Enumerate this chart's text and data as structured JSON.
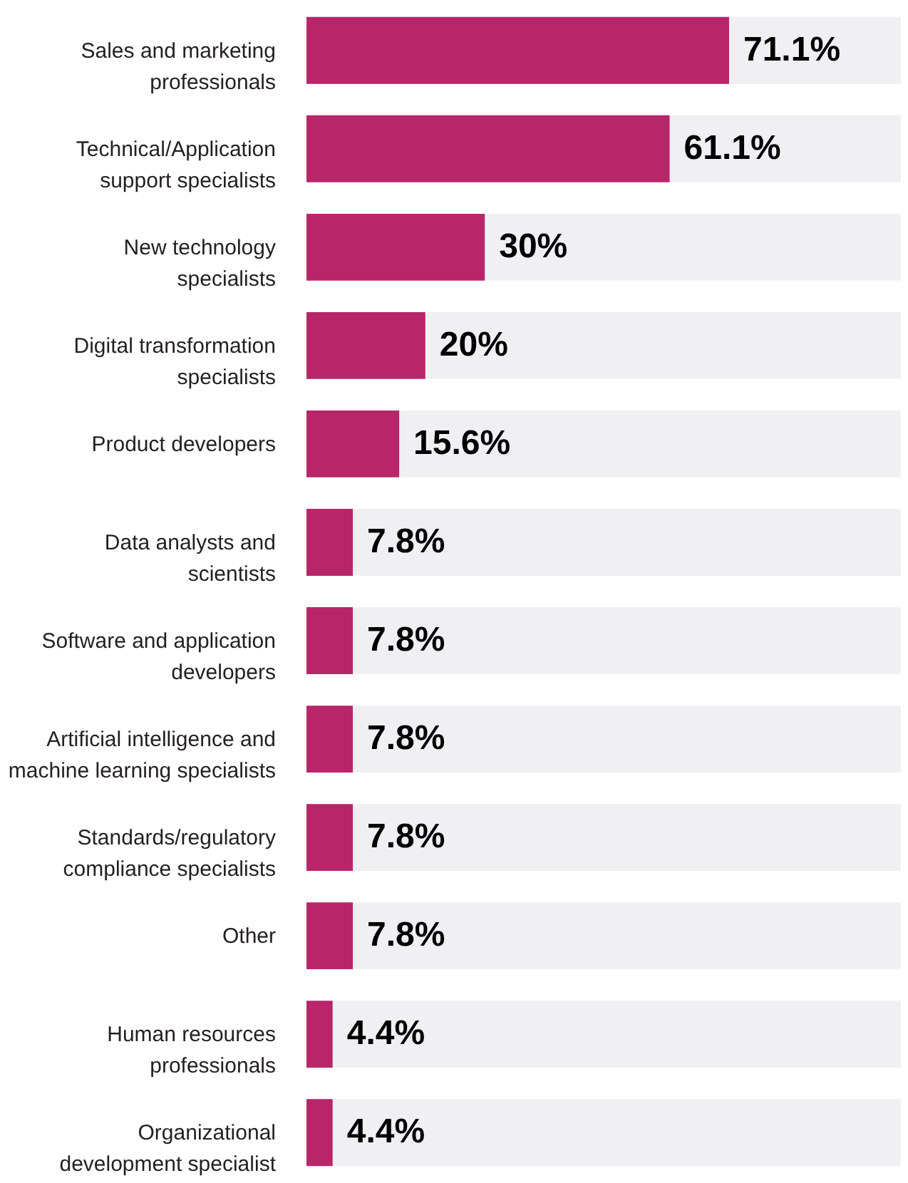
{
  "chart_data": {
    "type": "bar",
    "orientation": "horizontal",
    "categories": [
      "Sales and marketing professionals",
      "Technical/Application support specialists",
      "New technology specialists",
      "Digital transformation specialists",
      "Product developers",
      "Data analysts and scientists",
      "Software and application developers",
      "Artificial intelligence and machine learning specialists",
      "Standards/regulatory compliance specialists",
      "Other",
      "Human resources professionals",
      "Organizational development specialist"
    ],
    "values": [
      71.1,
      61.1,
      30,
      20,
      15.6,
      7.8,
      7.8,
      7.8,
      7.8,
      7.8,
      4.4,
      4.4
    ],
    "value_labels": [
      "71.1%",
      "61.1%",
      "30%",
      "20%",
      "15.6%",
      "7.8%",
      "7.8%",
      "7.8%",
      "7.8%",
      "7.8%",
      "4.4%",
      "4.4%"
    ],
    "color": "#b8266a",
    "xlim": [
      0,
      100
    ],
    "tick_labels": "y"
  }
}
